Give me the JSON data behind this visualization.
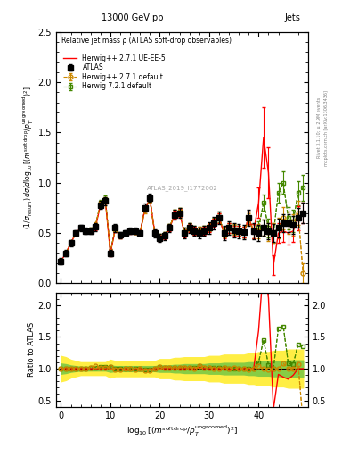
{
  "title_left": "13000 GeV pp",
  "title_right": "Jets",
  "plot_title": "Relative jet mass ρ (ATLAS soft-drop observables)",
  "ylabel_main": "(1/σₛₑₜᴺᴹ) dσ/d log₁₀[(mˢᵒᶠᵗʰʳᵒᵖ/pᵀᵁᵂᴿᵒᴯᵃᴸᴾᴽ)²]",
  "ylabel_ratio": "Ratio to ATLAS",
  "xlabel": "log₁₀[(mˢᵒᶠᵗʰʳᵒᵖ/pᵀᵁᵂᴿᵒᴯᵃᴸᴾᴽ)²]",
  "watermark": "ATLAS_2019_I1772062",
  "right_label": "mcplots.cern.ch [arXiv:1306.3436]",
  "rivet_label": "Rivet 3.1.10; ≥ 2.9M events",
  "ylim_main": [
    0,
    2.5
  ],
  "ylim_ratio": [
    0.4,
    2.2
  ],
  "xlim": [
    -1,
    50
  ],
  "legend_entries": [
    "ATLAS",
    "Herwig++ 2.7.1 default",
    "Herwig++ 2.7.1 UE-EE-5",
    "Herwig 7.2.1 default"
  ],
  "atlas_color": "black",
  "hw271_color": "#cc8800",
  "hw271ue_color": "red",
  "hw721_color": "#448800",
  "green_band_color": "#88cc44",
  "yellow_band_color": "#ffee44",
  "x": [
    0,
    1,
    2,
    3,
    4,
    5,
    6,
    7,
    8,
    9,
    10,
    11,
    12,
    13,
    14,
    15,
    16,
    17,
    18,
    19,
    20,
    21,
    22,
    23,
    24,
    25,
    26,
    27,
    28,
    29,
    30,
    31,
    32,
    33,
    34,
    35,
    36,
    37,
    38,
    39,
    40,
    41,
    42,
    43,
    44,
    45,
    46,
    47,
    48,
    49
  ],
  "atlas_y": [
    0.22,
    0.3,
    0.4,
    0.5,
    0.55,
    0.52,
    0.52,
    0.56,
    0.78,
    0.82,
    0.3,
    0.55,
    0.48,
    0.5,
    0.52,
    0.52,
    0.5,
    0.75,
    0.85,
    0.5,
    0.45,
    0.47,
    0.55,
    0.68,
    0.7,
    0.5,
    0.55,
    0.52,
    0.5,
    0.52,
    0.55,
    0.6,
    0.65,
    0.5,
    0.55,
    0.53,
    0.52,
    0.51,
    0.65,
    0.52,
    0.5,
    0.55,
    0.52,
    0.5,
    0.55,
    0.6,
    0.6,
    0.58,
    0.65,
    0.7
  ],
  "atlas_yerr": [
    0.03,
    0.03,
    0.03,
    0.03,
    0.03,
    0.03,
    0.03,
    0.04,
    0.04,
    0.04,
    0.03,
    0.04,
    0.03,
    0.03,
    0.03,
    0.03,
    0.03,
    0.04,
    0.04,
    0.04,
    0.04,
    0.04,
    0.04,
    0.05,
    0.05,
    0.05,
    0.05,
    0.05,
    0.05,
    0.05,
    0.06,
    0.06,
    0.06,
    0.07,
    0.07,
    0.07,
    0.07,
    0.07,
    0.08,
    0.08,
    0.08,
    0.08,
    0.08,
    0.09,
    0.09,
    0.09,
    0.09,
    0.09,
    0.1,
    0.1
  ],
  "hw271_y": [
    0.22,
    0.3,
    0.4,
    0.5,
    0.55,
    0.52,
    0.53,
    0.58,
    0.79,
    0.83,
    0.31,
    0.54,
    0.47,
    0.5,
    0.52,
    0.51,
    0.5,
    0.73,
    0.83,
    0.5,
    0.46,
    0.48,
    0.56,
    0.69,
    0.71,
    0.51,
    0.56,
    0.52,
    0.52,
    0.53,
    0.56,
    0.6,
    0.65,
    0.51,
    0.55,
    0.54,
    0.52,
    0.51,
    0.64,
    0.52,
    0.52,
    0.55,
    0.51,
    0.5,
    0.55,
    0.65,
    0.6,
    0.58,
    0.7,
    0.1
  ],
  "hw271_yerr": [
    0.02,
    0.02,
    0.02,
    0.02,
    0.02,
    0.02,
    0.02,
    0.03,
    0.03,
    0.03,
    0.03,
    0.03,
    0.02,
    0.02,
    0.02,
    0.02,
    0.02,
    0.03,
    0.03,
    0.03,
    0.03,
    0.03,
    0.03,
    0.04,
    0.04,
    0.04,
    0.04,
    0.04,
    0.04,
    0.04,
    0.04,
    0.04,
    0.05,
    0.05,
    0.05,
    0.05,
    0.05,
    0.05,
    0.06,
    0.07,
    0.07,
    0.08,
    0.09,
    0.1,
    0.1,
    0.11,
    0.11,
    0.11,
    0.12,
    0.1
  ],
  "hw271ue_y": [
    0.22,
    0.3,
    0.4,
    0.5,
    0.55,
    0.52,
    0.52,
    0.56,
    0.78,
    0.82,
    0.3,
    0.54,
    0.47,
    0.5,
    0.51,
    0.51,
    0.5,
    0.74,
    0.84,
    0.5,
    0.45,
    0.47,
    0.55,
    0.68,
    0.7,
    0.5,
    0.55,
    0.52,
    0.51,
    0.52,
    0.55,
    0.6,
    0.65,
    0.5,
    0.55,
    0.52,
    0.52,
    0.51,
    0.65,
    0.52,
    0.8,
    1.45,
    1.1,
    0.18,
    0.5,
    0.52,
    0.5,
    0.52,
    0.65,
    0.7
  ],
  "hw271ue_yerr": [
    0.02,
    0.02,
    0.02,
    0.02,
    0.02,
    0.02,
    0.02,
    0.03,
    0.03,
    0.03,
    0.03,
    0.03,
    0.02,
    0.02,
    0.02,
    0.02,
    0.02,
    0.03,
    0.03,
    0.03,
    0.03,
    0.03,
    0.03,
    0.04,
    0.04,
    0.04,
    0.04,
    0.04,
    0.04,
    0.04,
    0.04,
    0.04,
    0.05,
    0.05,
    0.05,
    0.05,
    0.05,
    0.05,
    0.06,
    0.07,
    0.15,
    0.3,
    0.25,
    0.1,
    0.1,
    0.11,
    0.11,
    0.11,
    0.12,
    0.1
  ],
  "hw721_y": [
    0.22,
    0.3,
    0.4,
    0.5,
    0.55,
    0.52,
    0.53,
    0.57,
    0.8,
    0.84,
    0.31,
    0.55,
    0.48,
    0.5,
    0.52,
    0.52,
    0.5,
    0.74,
    0.84,
    0.5,
    0.46,
    0.48,
    0.56,
    0.69,
    0.71,
    0.51,
    0.56,
    0.53,
    0.52,
    0.53,
    0.56,
    0.61,
    0.66,
    0.51,
    0.55,
    0.53,
    0.52,
    0.51,
    0.65,
    0.52,
    0.55,
    0.8,
    0.55,
    0.5,
    0.9,
    1.0,
    0.65,
    0.62,
    0.9,
    0.95
  ],
  "hw721_yerr": [
    0.02,
    0.02,
    0.02,
    0.02,
    0.02,
    0.02,
    0.02,
    0.03,
    0.03,
    0.03,
    0.03,
    0.03,
    0.02,
    0.02,
    0.02,
    0.02,
    0.02,
    0.03,
    0.03,
    0.03,
    0.03,
    0.03,
    0.03,
    0.04,
    0.04,
    0.04,
    0.04,
    0.04,
    0.04,
    0.04,
    0.04,
    0.04,
    0.05,
    0.05,
    0.05,
    0.05,
    0.05,
    0.05,
    0.06,
    0.07,
    0.07,
    0.08,
    0.09,
    0.1,
    0.1,
    0.11,
    0.11,
    0.11,
    0.12,
    0.13
  ],
  "green_band_lo": [
    0.92,
    0.93,
    0.95,
    0.96,
    0.97,
    0.97,
    0.97,
    0.97,
    0.97,
    0.97,
    0.95,
    0.96,
    0.96,
    0.96,
    0.96,
    0.96,
    0.96,
    0.96,
    0.96,
    0.96,
    0.95,
    0.95,
    0.95,
    0.94,
    0.94,
    0.93,
    0.93,
    0.93,
    0.93,
    0.93,
    0.92,
    0.92,
    0.92,
    0.91,
    0.91,
    0.91,
    0.91,
    0.91,
    0.9,
    0.9,
    0.89,
    0.89,
    0.89,
    0.88,
    0.88,
    0.88,
    0.87,
    0.87,
    0.87,
    0.87
  ],
  "green_band_hi": [
    1.08,
    1.07,
    1.05,
    1.04,
    1.03,
    1.03,
    1.03,
    1.03,
    1.03,
    1.03,
    1.05,
    1.04,
    1.04,
    1.04,
    1.04,
    1.04,
    1.04,
    1.04,
    1.04,
    1.04,
    1.05,
    1.05,
    1.05,
    1.06,
    1.06,
    1.07,
    1.07,
    1.07,
    1.07,
    1.07,
    1.08,
    1.08,
    1.08,
    1.09,
    1.09,
    1.09,
    1.09,
    1.09,
    1.1,
    1.1,
    1.11,
    1.11,
    1.11,
    1.12,
    1.12,
    1.12,
    1.13,
    1.13,
    1.13,
    1.13
  ],
  "yellow_band_lo": [
    0.8,
    0.82,
    0.86,
    0.88,
    0.9,
    0.9,
    0.9,
    0.9,
    0.9,
    0.9,
    0.86,
    0.88,
    0.88,
    0.88,
    0.88,
    0.88,
    0.88,
    0.88,
    0.88,
    0.88,
    0.85,
    0.85,
    0.85,
    0.83,
    0.83,
    0.82,
    0.82,
    0.82,
    0.82,
    0.82,
    0.8,
    0.8,
    0.8,
    0.78,
    0.78,
    0.78,
    0.78,
    0.78,
    0.76,
    0.76,
    0.74,
    0.74,
    0.74,
    0.72,
    0.72,
    0.72,
    0.7,
    0.7,
    0.7,
    0.7
  ],
  "yellow_band_hi": [
    1.2,
    1.18,
    1.14,
    1.12,
    1.1,
    1.1,
    1.1,
    1.1,
    1.1,
    1.1,
    1.14,
    1.12,
    1.12,
    1.12,
    1.12,
    1.12,
    1.12,
    1.12,
    1.12,
    1.12,
    1.15,
    1.15,
    1.15,
    1.17,
    1.17,
    1.18,
    1.18,
    1.18,
    1.18,
    1.18,
    1.2,
    1.2,
    1.2,
    1.22,
    1.22,
    1.22,
    1.22,
    1.22,
    1.24,
    1.24,
    1.26,
    1.26,
    1.26,
    1.28,
    1.28,
    1.28,
    1.3,
    1.3,
    1.3,
    1.3
  ]
}
